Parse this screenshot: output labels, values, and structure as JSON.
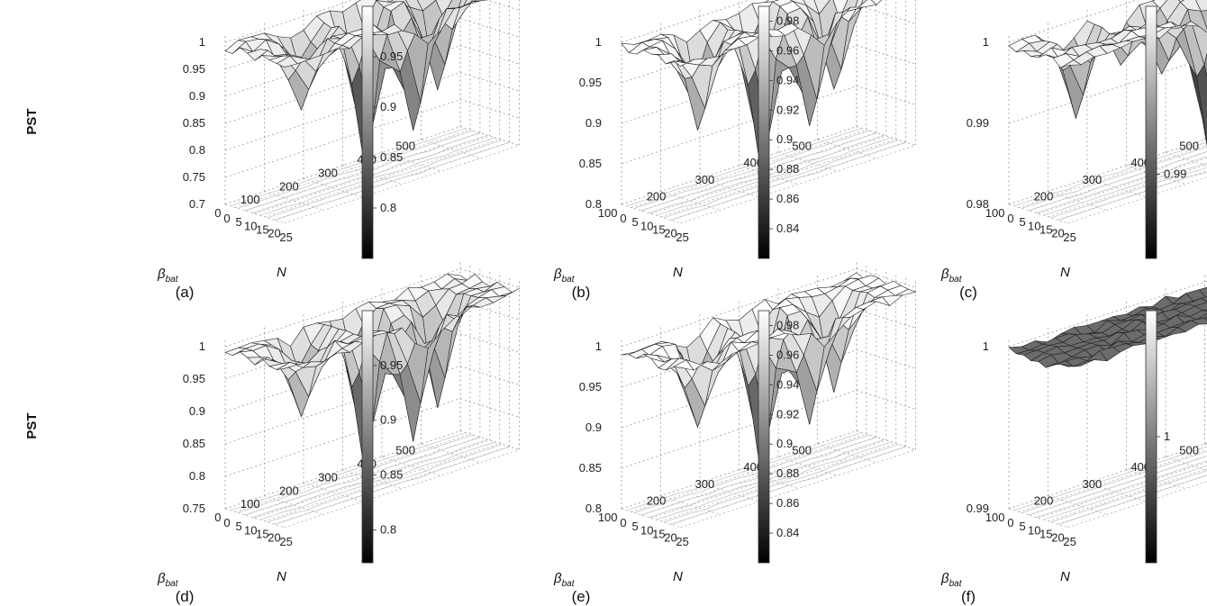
{
  "figure": {
    "ylabel": "PST",
    "xlabel_beta": "β",
    "xlabel_beta_sub": "bat",
    "xlabel_N": "N"
  },
  "chart_data": [
    {
      "type": "surface3d",
      "caption": "(a)",
      "ylabel": "PST",
      "zlim": [
        0.7,
        1.0
      ],
      "z_ticks": [
        "0.7",
        "0.75",
        "0.8",
        "0.85",
        "0.9",
        "0.95",
        "1"
      ],
      "beta_ticks": [
        "0",
        "100",
        "200",
        "300",
        "400",
        "500"
      ],
      "n_ticks": [
        "0",
        "5",
        "10",
        "15",
        "20",
        "25"
      ],
      "colorbar_ticks": [
        "0.8",
        "0.85",
        "0.9",
        "0.95"
      ],
      "colorbar_range": [
        0.75,
        1.0
      ],
      "dips": [
        [
          9,
          3,
          0.28
        ],
        [
          11,
          6,
          0.22
        ],
        [
          5,
          2,
          0.1
        ],
        [
          14,
          4,
          0.18
        ],
        [
          3,
          5,
          0.12
        ]
      ]
    },
    {
      "type": "surface3d",
      "caption": "(b)",
      "ylabel": "",
      "zlim": [
        0.8,
        1.0
      ],
      "z_ticks": [
        "0.8",
        "0.85",
        "0.9",
        "0.95",
        "1"
      ],
      "beta_ticks": [
        "100",
        "200",
        "300",
        "400",
        "500"
      ],
      "n_ticks": [
        "0",
        "5",
        "10",
        "15",
        "20",
        "25"
      ],
      "colorbar_ticks": [
        "0.84",
        "0.86",
        "0.88",
        "0.9",
        "0.92",
        "0.94",
        "0.96",
        "0.98"
      ],
      "colorbar_range": [
        0.82,
        0.99
      ],
      "dips": [
        [
          9,
          3,
          0.2
        ],
        [
          11,
          6,
          0.14
        ],
        [
          5,
          2,
          0.1
        ],
        [
          14,
          4,
          0.12
        ],
        [
          3,
          5,
          0.1
        ]
      ]
    },
    {
      "type": "surface3d",
      "caption": "(c)",
      "ylabel": "",
      "zlim": [
        0.98,
        1.0
      ],
      "z_ticks": [
        "0.98",
        "0.99",
        "1"
      ],
      "beta_ticks": [
        "100",
        "200",
        "300",
        "400",
        "500"
      ],
      "n_ticks": [
        "0",
        "5",
        "10",
        "15",
        "20",
        "25"
      ],
      "colorbar_ticks": [
        "0.99"
      ],
      "colorbar_range": [
        0.985,
        1.0
      ],
      "dips": [
        [
          12,
          6,
          0.019
        ],
        [
          4,
          2,
          0.01
        ],
        [
          10,
          3,
          0.008
        ],
        [
          14,
          5,
          0.009
        ],
        [
          8,
          1,
          0.006
        ]
      ]
    },
    {
      "type": "surface3d",
      "caption": "(d)",
      "ylabel": "PST",
      "zlim": [
        0.75,
        1.0
      ],
      "z_ticks": [
        "0.75",
        "0.8",
        "0.85",
        "0.9",
        "0.95",
        "1"
      ],
      "beta_ticks": [
        "0",
        "100",
        "200",
        "300",
        "400",
        "500"
      ],
      "n_ticks": [
        "0",
        "5",
        "10",
        "15",
        "20",
        "25"
      ],
      "colorbar_ticks": [
        "0.8",
        "0.85",
        "0.9",
        "0.95"
      ],
      "colorbar_range": [
        0.77,
        1.0
      ],
      "dips": [
        [
          9,
          3,
          0.23
        ],
        [
          11,
          6,
          0.19
        ],
        [
          5,
          2,
          0.09
        ],
        [
          14,
          4,
          0.16
        ],
        [
          3,
          5,
          0.1
        ]
      ]
    },
    {
      "type": "surface3d",
      "caption": "(e)",
      "ylabel": "",
      "zlim": [
        0.8,
        1.0
      ],
      "z_ticks": [
        "0.8",
        "0.85",
        "0.9",
        "0.95",
        "1"
      ],
      "beta_ticks": [
        "100",
        "200",
        "300",
        "400",
        "500"
      ],
      "n_ticks": [
        "0",
        "5",
        "10",
        "15",
        "20",
        "25"
      ],
      "colorbar_ticks": [
        "0.84",
        "0.86",
        "0.88",
        "0.9",
        "0.92",
        "0.94",
        "0.96",
        "0.98"
      ],
      "colorbar_range": [
        0.82,
        0.99
      ],
      "dips": [
        [
          9,
          3,
          0.19
        ],
        [
          11,
          6,
          0.13
        ],
        [
          5,
          2,
          0.09
        ],
        [
          14,
          4,
          0.11
        ],
        [
          3,
          5,
          0.1
        ]
      ]
    },
    {
      "type": "surface3d",
      "caption": "(f)",
      "ylabel": "",
      "zlim": [
        0.99,
        1.0
      ],
      "z_ticks": [
        "0.99",
        "1"
      ],
      "beta_ticks": [
        "100",
        "200",
        "300",
        "400",
        "500"
      ],
      "n_ticks": [
        "0",
        "5",
        "10",
        "15",
        "20",
        "25"
      ],
      "colorbar_ticks": [
        "1"
      ],
      "colorbar_range": [
        0.99,
        1.01
      ],
      "dips": []
    }
  ]
}
